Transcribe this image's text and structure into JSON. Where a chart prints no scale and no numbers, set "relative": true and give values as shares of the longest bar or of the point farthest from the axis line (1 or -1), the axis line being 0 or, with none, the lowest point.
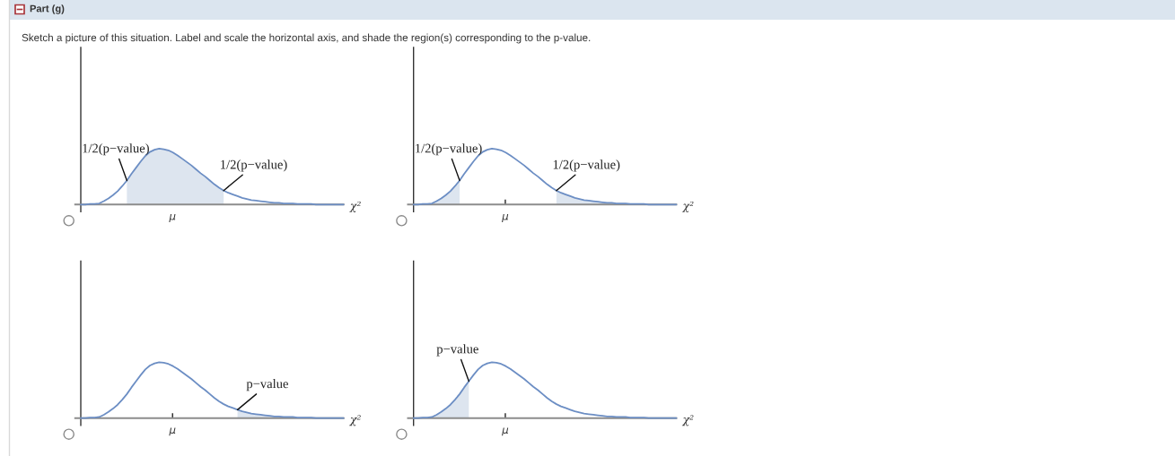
{
  "chart_data": [
    {
      "type": "line",
      "relative": true,
      "title": "Part (g)",
      "subtitle": "Sketch a picture of this situation. Label and scale the horizontal axis, and shade the region(s) corresponding to the p-value.",
      "xlabel": "χ²",
      "categories": [
        null,
        null,
        null,
        null,
        null,
        null,
        null,
        null,
        null,
        null,
        null,
        null,
        null,
        null,
        null,
        null,
        null,
        null,
        null,
        null,
        null,
        null,
        null,
        null,
        null,
        null,
        null,
        null,
        null,
        null,
        null,
        null,
        null,
        null,
        null,
        null,
        null,
        null,
        null,
        null,
        null,
        null,
        null,
        null,
        null,
        null,
        null,
        null,
        null,
        null,
        null,
        null,
        null,
        null,
        null,
        null,
        null,
        null
      ],
      "series": [
        {
          "type": "area",
          "color": "#dde5ef",
          "values": [
            null,
            null,
            null,
            null,
            null,
            null,
            null,
            null,
            null,
            null,
            0.43,
            0.55,
            0.66,
            0.77,
            0.87,
            0.94,
            0.98,
            1,
            0.99,
            0.97,
            0.93,
            0.88,
            0.82,
            0.76,
            0.7,
            0.63,
            0.56,
            0.5,
            0.43,
            0.36,
            0.3,
            0.25,
            null,
            null,
            null,
            null,
            null,
            null,
            null,
            null,
            null,
            null,
            null,
            null,
            null,
            null,
            null,
            null,
            null,
            null,
            null,
            null,
            null,
            null,
            null,
            null,
            null,
            null
          ]
        },
        {
          "color": "#6c8ec4",
          "values": [
            0,
            0,
            0.01,
            0.01,
            0.02,
            0.06,
            0.11,
            0.17,
            0.24,
            0.33,
            0.43,
            0.55,
            0.66,
            0.77,
            0.87,
            0.94,
            0.98,
            1,
            0.99,
            0.97,
            0.93,
            0.88,
            0.82,
            0.76,
            0.7,
            0.63,
            0.56,
            0.5,
            0.43,
            0.36,
            0.3,
            0.25,
            0.21,
            0.18,
            0.15,
            0.12,
            0.1,
            0.08,
            0.07,
            0.06,
            0.05,
            0.04,
            0.03,
            0.03,
            0.02,
            0.02,
            0.02,
            0.01,
            0.01,
            0.01,
            0.01,
            0,
            0,
            0,
            0,
            0,
            0,
            0
          ]
        }
      ],
      "annotations": [
        "1/2(p−value)",
        "1/2(p−value)",
        "μ"
      ]
    },
    {
      "type": "line",
      "relative": true,
      "xlabel": "χ²",
      "categories": [
        null,
        null,
        null,
        null,
        null,
        null,
        null,
        null,
        null,
        null,
        null,
        null,
        null,
        null,
        null,
        null,
        null,
        null,
        null,
        null,
        null,
        null,
        null,
        null,
        null,
        null,
        null,
        null,
        null,
        null,
        null,
        null,
        null,
        null,
        null,
        null,
        null,
        null,
        null,
        null,
        null,
        null,
        null,
        null,
        null,
        null,
        null,
        null,
        null,
        null,
        null,
        null,
        null,
        null,
        null,
        null,
        null,
        null
      ],
      "series": [
        {
          "type": "area",
          "color": "#dde5ef",
          "values": [
            0,
            0,
            0.01,
            0.01,
            0.02,
            0.06,
            0.11,
            0.17,
            0.24,
            0.33,
            0.43,
            null,
            null,
            null,
            null,
            null,
            null,
            null,
            null,
            null,
            null,
            null,
            null,
            null,
            null,
            null,
            null,
            null,
            null,
            null,
            null,
            0.25,
            0.21,
            0.18,
            0.15,
            0.12,
            0.1,
            0.08,
            0.07,
            0.06,
            0.05,
            0.04,
            0.03,
            0.03,
            0.02,
            0.02,
            0.02,
            0.01,
            0.01,
            0.01,
            0.01,
            0,
            0,
            0,
            0,
            0,
            0,
            0
          ]
        },
        {
          "color": "#6c8ec4",
          "values": [
            0,
            0,
            0.01,
            0.01,
            0.02,
            0.06,
            0.11,
            0.17,
            0.24,
            0.33,
            0.43,
            0.55,
            0.66,
            0.77,
            0.87,
            0.94,
            0.98,
            1,
            0.99,
            0.97,
            0.93,
            0.88,
            0.82,
            0.76,
            0.7,
            0.63,
            0.56,
            0.5,
            0.43,
            0.36,
            0.3,
            0.25,
            0.21,
            0.18,
            0.15,
            0.12,
            0.1,
            0.08,
            0.07,
            0.06,
            0.05,
            0.04,
            0.03,
            0.03,
            0.02,
            0.02,
            0.02,
            0.01,
            0.01,
            0.01,
            0.01,
            0,
            0,
            0,
            0,
            0,
            0,
            0
          ]
        }
      ],
      "annotations": [
        "1/2(p−value)",
        "1/2(p−value)",
        "μ"
      ]
    },
    {
      "type": "line",
      "relative": true,
      "xlabel": "χ²",
      "categories": [
        null,
        null,
        null,
        null,
        null,
        null,
        null,
        null,
        null,
        null,
        null,
        null,
        null,
        null,
        null,
        null,
        null,
        null,
        null,
        null,
        null,
        null,
        null,
        null,
        null,
        null,
        null,
        null,
        null,
        null,
        null,
        null,
        null,
        null,
        null,
        null,
        null,
        null,
        null,
        null,
        null,
        null,
        null,
        null,
        null,
        null,
        null,
        null,
        null,
        null,
        null,
        null,
        null,
        null,
        null,
        null,
        null,
        null
      ],
      "series": [
        {
          "type": "area",
          "color": "#dde5ef",
          "values": [
            null,
            null,
            null,
            null,
            null,
            null,
            null,
            null,
            null,
            null,
            null,
            null,
            null,
            null,
            null,
            null,
            null,
            null,
            null,
            null,
            null,
            null,
            null,
            null,
            null,
            null,
            null,
            null,
            null,
            null,
            null,
            null,
            null,
            null,
            0.15,
            0.12,
            0.1,
            0.08,
            0.07,
            0.06,
            0.05,
            0.04,
            0.03,
            0.03,
            0.02,
            0.02,
            0.02,
            0.01,
            0.01,
            0.01,
            0.01,
            0,
            0,
            0,
            0,
            0,
            0,
            0
          ]
        },
        {
          "color": "#6c8ec4",
          "values": [
            0,
            0,
            0.01,
            0.01,
            0.02,
            0.06,
            0.11,
            0.17,
            0.24,
            0.33,
            0.43,
            0.55,
            0.66,
            0.77,
            0.87,
            0.94,
            0.98,
            1,
            0.99,
            0.97,
            0.93,
            0.88,
            0.82,
            0.76,
            0.7,
            0.63,
            0.56,
            0.5,
            0.43,
            0.36,
            0.3,
            0.25,
            0.21,
            0.18,
            0.15,
            0.12,
            0.1,
            0.08,
            0.07,
            0.06,
            0.05,
            0.04,
            0.03,
            0.03,
            0.02,
            0.02,
            0.02,
            0.01,
            0.01,
            0.01,
            0.01,
            0,
            0,
            0,
            0,
            0,
            0,
            0
          ]
        }
      ],
      "annotations": [
        "p−value",
        "μ"
      ]
    },
    {
      "type": "line",
      "relative": true,
      "xlabel": "χ²",
      "categories": [
        null,
        null,
        null,
        null,
        null,
        null,
        null,
        null,
        null,
        null,
        null,
        null,
        null,
        null,
        null,
        null,
        null,
        null,
        null,
        null,
        null,
        null,
        null,
        null,
        null,
        null,
        null,
        null,
        null,
        null,
        null,
        null,
        null,
        null,
        null,
        null,
        null,
        null,
        null,
        null,
        null,
        null,
        null,
        null,
        null,
        null,
        null,
        null,
        null,
        null,
        null,
        null,
        null,
        null,
        null,
        null,
        null,
        null
      ],
      "series": [
        {
          "type": "area",
          "color": "#dde5ef",
          "values": [
            0,
            0,
            0.01,
            0.01,
            0.02,
            0.06,
            0.11,
            0.17,
            0.24,
            0.33,
            0.43,
            0.55,
            0.66,
            null,
            null,
            null,
            null,
            null,
            null,
            null,
            null,
            null,
            null,
            null,
            null,
            null,
            null,
            null,
            null,
            null,
            null,
            null,
            null,
            null,
            null,
            null,
            null,
            null,
            null,
            null,
            null,
            null,
            null,
            null,
            null,
            null,
            null,
            null,
            null,
            null,
            null,
            null,
            null,
            null,
            null,
            null,
            null,
            null
          ]
        },
        {
          "color": "#6c8ec4",
          "values": [
            0,
            0,
            0.01,
            0.01,
            0.02,
            0.06,
            0.11,
            0.17,
            0.24,
            0.33,
            0.43,
            0.55,
            0.66,
            0.77,
            0.87,
            0.94,
            0.98,
            1,
            0.99,
            0.97,
            0.93,
            0.88,
            0.82,
            0.76,
            0.7,
            0.63,
            0.56,
            0.5,
            0.43,
            0.36,
            0.3,
            0.25,
            0.21,
            0.18,
            0.15,
            0.12,
            0.1,
            0.08,
            0.07,
            0.06,
            0.05,
            0.04,
            0.03,
            0.03,
            0.02,
            0.02,
            0.02,
            0.01,
            0.01,
            0.01,
            0.01,
            0,
            0,
            0,
            0,
            0,
            0,
            0
          ]
        }
      ],
      "annotations": [
        "p−value",
        "μ"
      ]
    }
  ]
}
